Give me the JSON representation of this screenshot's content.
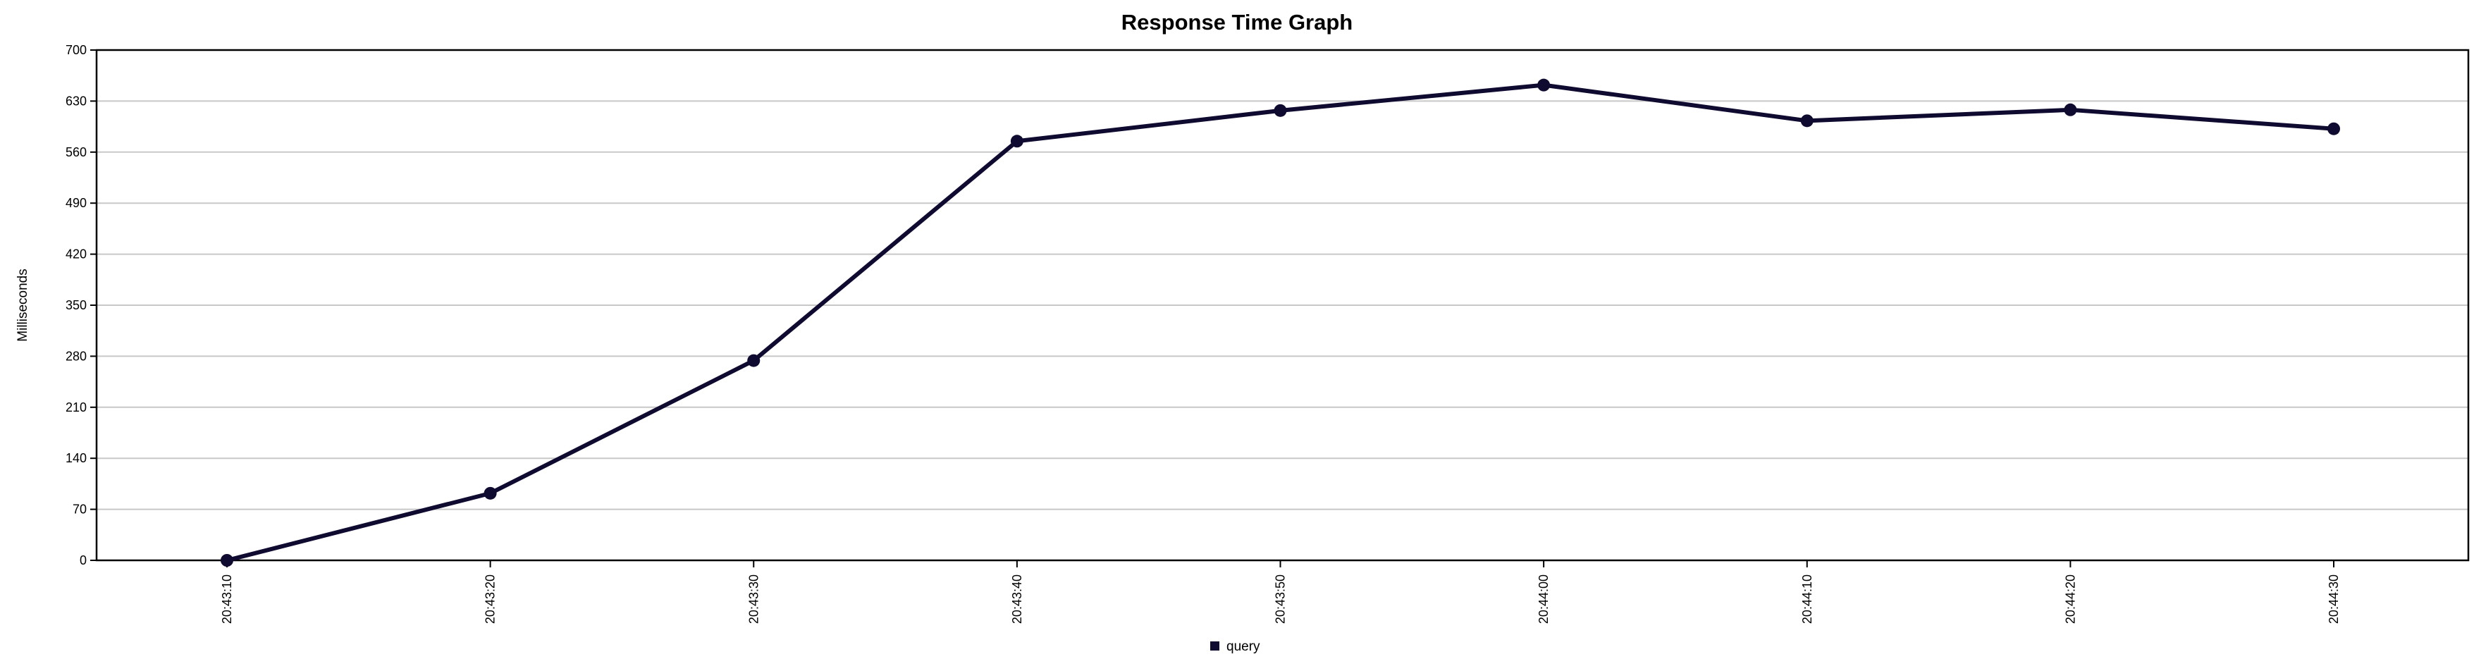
{
  "chart_data": {
    "type": "line",
    "title": "Response Time Graph",
    "xlabel": "",
    "ylabel": "Milliseconds",
    "ylim": [
      0,
      700
    ],
    "yticks": [
      0,
      70,
      140,
      210,
      280,
      350,
      420,
      490,
      560,
      630,
      700
    ],
    "categories": [
      "20:43:10",
      "20:43:20",
      "20:43:30",
      "20:43:40",
      "20:43:50",
      "20:44:00",
      "20:44:10",
      "20:44:20",
      "20:44:30"
    ],
    "series": [
      {
        "name": "query",
        "color": "#0f0a30",
        "values": [
          0,
          92,
          274,
          575,
          617,
          652,
          603,
          618,
          592
        ]
      }
    ],
    "grid": true,
    "legend_position": "bottom"
  }
}
